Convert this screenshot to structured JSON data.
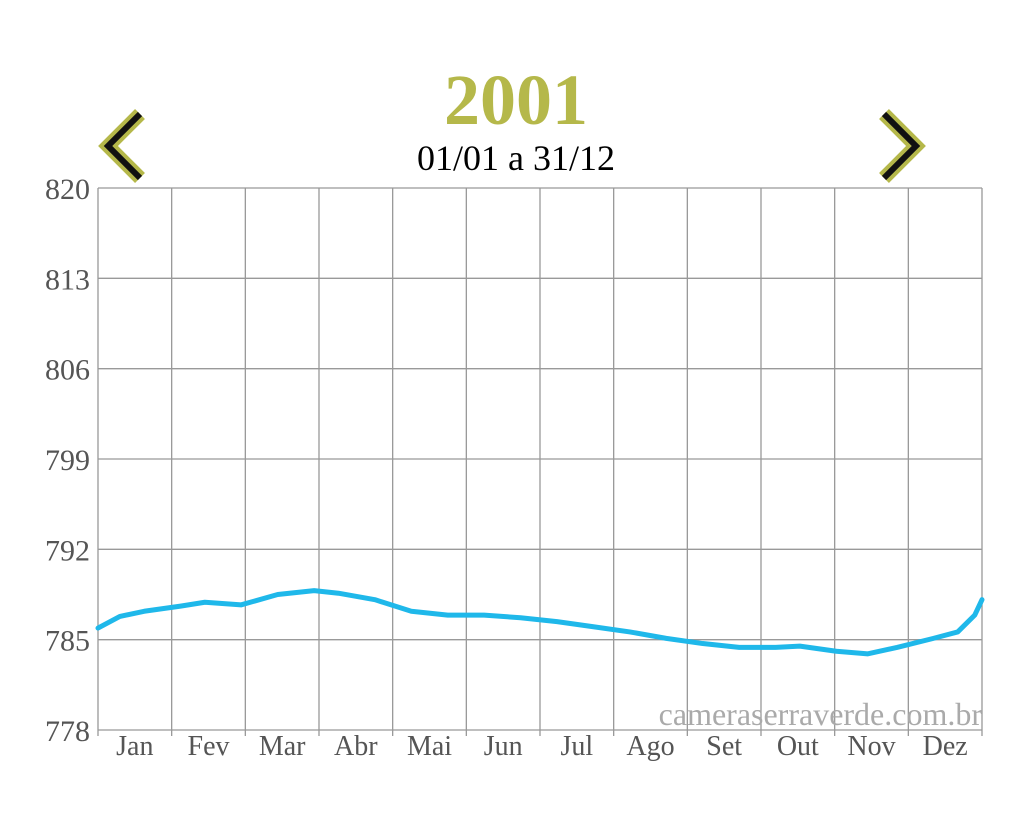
{
  "chart_data": {
    "type": "line",
    "title": "2001",
    "subtitle": "01/01 a 31/12",
    "watermark": "cameraserraverde.com.br",
    "categories": [
      "Jan",
      "Fev",
      "Mar",
      "Abr",
      "Mai",
      "Jun",
      "Jul",
      "Ago",
      "Set",
      "Out",
      "Nov",
      "Dez"
    ],
    "x": [
      1,
      10,
      20,
      35,
      45,
      60,
      75,
      90,
      100,
      115,
      130,
      145,
      160,
      175,
      190,
      205,
      220,
      235,
      250,
      265,
      280,
      290,
      305,
      318,
      330,
      345,
      355,
      362,
      365
    ],
    "xlim": [
      1,
      365
    ],
    "series": [
      {
        "name": "2001",
        "color": "#1fb8ea",
        "values": [
          785.9,
          786.8,
          787.2,
          787.6,
          787.9,
          787.7,
          788.5,
          788.8,
          788.6,
          788.1,
          787.2,
          786.9,
          786.9,
          786.7,
          786.4,
          786.0,
          785.6,
          785.1,
          784.7,
          784.4,
          784.4,
          784.5,
          784.1,
          783.9,
          784.4,
          785.1,
          785.6,
          786.9,
          788.1
        ]
      }
    ],
    "ylim": [
      778,
      820
    ],
    "yticks": [
      778,
      785,
      792,
      799,
      806,
      813,
      820
    ],
    "grid": true
  }
}
